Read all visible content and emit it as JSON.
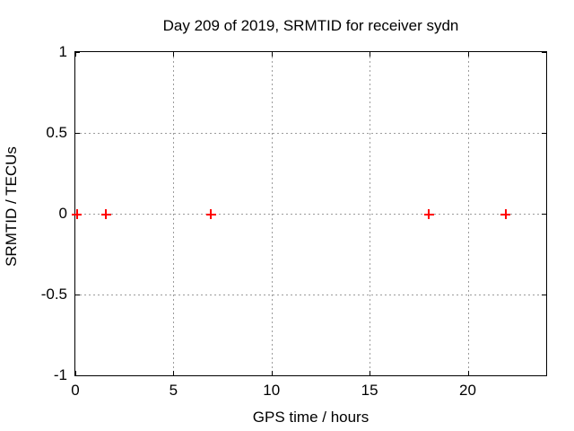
{
  "chart": {
    "title": "Day 209 of 2019, SRMTID for receiver sydn",
    "xlabel": "GPS time / hours",
    "ylabel": "SRMTID / TECUs"
  },
  "chart_data": {
    "type": "scatter",
    "title": "Day 209 of 2019, SRMTID for receiver sydn",
    "xlabel": "GPS time / hours",
    "ylabel": "SRMTID / TECUs",
    "xlim": [
      0,
      24
    ],
    "ylim": [
      -1,
      1
    ],
    "x_ticks": [
      0,
      5,
      10,
      15,
      20
    ],
    "x_tick_labels": [
      "0",
      "5",
      "10",
      "15",
      "20"
    ],
    "y_ticks": [
      -1,
      -0.5,
      0,
      0.5,
      1
    ],
    "y_tick_labels": [
      "-1",
      "-0.5",
      "0",
      "0.5",
      "1"
    ],
    "x_gridlines": [
      5,
      10,
      15,
      20
    ],
    "y_gridlines": [
      -0.5,
      0,
      0.5
    ],
    "grid": true,
    "legend_position": "none",
    "series": [
      {
        "name": "SRMTID",
        "marker": "plus",
        "color": "#ff0000",
        "points": [
          {
            "x": 0.05,
            "y": 0
          },
          {
            "x": 1.55,
            "y": 0
          },
          {
            "x": 6.9,
            "y": 0
          },
          {
            "x": 18.0,
            "y": 0
          },
          {
            "x": 21.9,
            "y": 0
          }
        ]
      }
    ]
  },
  "colors": {
    "marker": "#ff0000",
    "grid": "#9c9c9c",
    "axis": "#000000",
    "background": "#ffffff",
    "text": "#000000"
  }
}
